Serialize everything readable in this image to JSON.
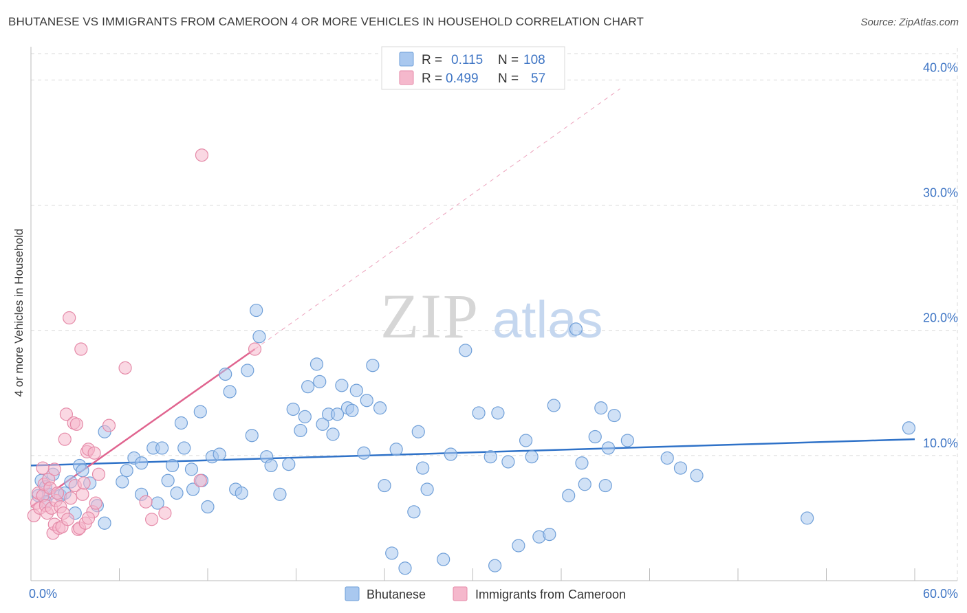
{
  "title": "BHUTANESE VS IMMIGRANTS FROM CAMEROON 4 OR MORE VEHICLES IN HOUSEHOLD CORRELATION CHART",
  "source": "Source: ZipAtlas.com",
  "watermark": {
    "zip": "ZIP",
    "atlas": "atlas"
  },
  "colors": {
    "blue_fill": "#a9c8ef",
    "blue_stroke": "#6f9fd8",
    "blue_line": "#2f72c8",
    "pink_fill": "#f5b8cc",
    "pink_stroke": "#e58aa8",
    "pink_line": "#e0648f",
    "axis_text": "#3d74c4",
    "grid": "#d9d9d9"
  },
  "legend": {
    "rows": [
      {
        "r_label": "R =",
        "r_value": "0.115",
        "n_label": "N =",
        "n_value": "108"
      },
      {
        "r_label": "R =",
        "r_value": "0.499",
        "n_label": "N =",
        "n_value": "57"
      }
    ]
  },
  "chart_data": {
    "type": "scatter",
    "title": "BHUTANESE VS IMMIGRANTS FROM CAMEROON 4 OR MORE VEHICLES IN HOUSEHOLD CORRELATION CHART",
    "xlabel": "",
    "ylabel": "4 or more Vehicles in Household",
    "xlim": [
      0,
      60
    ],
    "ylim": [
      0,
      42
    ],
    "x_tick_labels": [
      {
        "value": 0,
        "label": "0.0%"
      },
      {
        "value": 60,
        "label": "60.0%"
      }
    ],
    "y_tick_labels": [
      {
        "value": 10,
        "label": "10.0%"
      },
      {
        "value": 20,
        "label": "20.0%"
      },
      {
        "value": 30,
        "label": "30.0%"
      },
      {
        "value": 40,
        "label": "40.0%"
      }
    ],
    "x_minor_ticks": [
      0,
      6,
      12,
      18,
      24,
      30,
      36,
      42,
      48,
      54,
      60
    ],
    "grid": true,
    "series": [
      {
        "name": "Bhutanese",
        "color": "#a9c8ef",
        "trend": {
          "x": [
            0,
            60
          ],
          "y": [
            9.2,
            11.3
          ]
        },
        "points": [
          [
            0.5,
            6.8
          ],
          [
            0.7,
            8.0
          ],
          [
            1.0,
            7.5
          ],
          [
            1.2,
            6.9
          ],
          [
            1.0,
            6.3
          ],
          [
            1.5,
            8.5
          ],
          [
            2.0,
            6.8
          ],
          [
            2.3,
            7.0
          ],
          [
            2.7,
            7.9
          ],
          [
            3.3,
            9.2
          ],
          [
            3.0,
            5.4
          ],
          [
            3.5,
            8.8
          ],
          [
            4.0,
            7.8
          ],
          [
            4.5,
            6.0
          ],
          [
            5.0,
            4.6
          ],
          [
            5.0,
            11.9
          ],
          [
            6.2,
            7.9
          ],
          [
            6.5,
            8.8
          ],
          [
            7.0,
            9.8
          ],
          [
            7.5,
            9.4
          ],
          [
            7.5,
            6.9
          ],
          [
            8.3,
            10.6
          ],
          [
            8.6,
            6.2
          ],
          [
            8.9,
            10.6
          ],
          [
            9.3,
            8.0
          ],
          [
            9.6,
            9.2
          ],
          [
            9.9,
            7.0
          ],
          [
            10.2,
            12.6
          ],
          [
            10.4,
            10.6
          ],
          [
            10.9,
            8.9
          ],
          [
            11.0,
            7.3
          ],
          [
            11.5,
            13.5
          ],
          [
            11.6,
            8.0
          ],
          [
            12.0,
            5.9
          ],
          [
            12.3,
            9.9
          ],
          [
            12.8,
            10.1
          ],
          [
            13.2,
            16.5
          ],
          [
            13.5,
            15.1
          ],
          [
            13.9,
            7.3
          ],
          [
            14.3,
            7.0
          ],
          [
            14.7,
            16.8
          ],
          [
            15.0,
            11.6
          ],
          [
            15.3,
            21.6
          ],
          [
            15.5,
            19.5
          ],
          [
            16.0,
            9.9
          ],
          [
            16.3,
            9.2
          ],
          [
            16.9,
            6.9
          ],
          [
            17.5,
            9.3
          ],
          [
            17.8,
            13.7
          ],
          [
            18.3,
            12.0
          ],
          [
            18.6,
            13.1
          ],
          [
            18.8,
            15.5
          ],
          [
            19.4,
            17.3
          ],
          [
            19.6,
            15.9
          ],
          [
            19.8,
            12.5
          ],
          [
            20.2,
            13.3
          ],
          [
            20.5,
            11.7
          ],
          [
            20.8,
            13.3
          ],
          [
            21.1,
            15.6
          ],
          [
            21.5,
            13.8
          ],
          [
            21.8,
            13.6
          ],
          [
            22.1,
            15.2
          ],
          [
            22.6,
            10.2
          ],
          [
            22.8,
            14.4
          ],
          [
            23.2,
            17.2
          ],
          [
            23.7,
            13.8
          ],
          [
            24.0,
            7.6
          ],
          [
            24.5,
            2.2
          ],
          [
            24.8,
            10.5
          ],
          [
            25.4,
            1.0
          ],
          [
            26.0,
            5.5
          ],
          [
            26.3,
            11.9
          ],
          [
            26.6,
            9.0
          ],
          [
            26.9,
            7.3
          ],
          [
            28.0,
            1.7
          ],
          [
            28.5,
            10.1
          ],
          [
            29.5,
            18.4
          ],
          [
            30.4,
            13.4
          ],
          [
            31.2,
            9.9
          ],
          [
            31.5,
            1.2
          ],
          [
            31.7,
            13.4
          ],
          [
            32.4,
            9.5
          ],
          [
            33.1,
            2.8
          ],
          [
            33.6,
            11.2
          ],
          [
            34.0,
            9.9
          ],
          [
            34.5,
            3.5
          ],
          [
            35.2,
            3.7
          ],
          [
            35.5,
            14.0
          ],
          [
            36.5,
            6.8
          ],
          [
            37.0,
            20.1
          ],
          [
            37.4,
            9.4
          ],
          [
            37.6,
            7.7
          ],
          [
            38.3,
            11.5
          ],
          [
            38.7,
            13.8
          ],
          [
            39.0,
            7.6
          ],
          [
            39.2,
            10.6
          ],
          [
            39.6,
            13.2
          ],
          [
            40.5,
            11.2
          ],
          [
            43.2,
            9.8
          ],
          [
            44.1,
            9.0
          ],
          [
            45.2,
            8.4
          ],
          [
            52.7,
            5.0
          ],
          [
            59.6,
            12.2
          ]
        ]
      },
      {
        "name": "Immigrants from Cameroon",
        "color": "#f5b8cc",
        "trend": {
          "x": [
            0,
            15.2
          ],
          "y": [
            5.9,
            18.5
          ]
        },
        "trend_extension": {
          "x": [
            15.2,
            40
          ],
          "y": [
            18.5,
            39.3
          ]
        },
        "points": [
          [
            0.2,
            5.2
          ],
          [
            0.4,
            6.2
          ],
          [
            0.5,
            7.0
          ],
          [
            0.6,
            5.8
          ],
          [
            0.8,
            6.8
          ],
          [
            0.9,
            7.7
          ],
          [
            1.0,
            6.0
          ],
          [
            1.1,
            5.4
          ],
          [
            1.2,
            8.1
          ],
          [
            1.3,
            7.4
          ],
          [
            1.4,
            5.8
          ],
          [
            1.5,
            3.8
          ],
          [
            1.6,
            4.5
          ],
          [
            1.6,
            8.9
          ],
          [
            1.7,
            6.4
          ],
          [
            1.8,
            7.0
          ],
          [
            1.9,
            4.2
          ],
          [
            2.0,
            5.9
          ],
          [
            2.1,
            4.3
          ],
          [
            2.2,
            5.4
          ],
          [
            2.3,
            11.3
          ],
          [
            2.4,
            13.3
          ],
          [
            2.5,
            4.9
          ],
          [
            2.6,
            21.0
          ],
          [
            2.7,
            6.6
          ],
          [
            2.9,
            12.6
          ],
          [
            3.0,
            7.6
          ],
          [
            3.1,
            12.5
          ],
          [
            3.2,
            4.1
          ],
          [
            3.3,
            4.2
          ],
          [
            3.4,
            18.5
          ],
          [
            3.5,
            6.9
          ],
          [
            3.6,
            7.8
          ],
          [
            3.7,
            4.6
          ],
          [
            3.8,
            10.3
          ],
          [
            3.9,
            10.5
          ],
          [
            4.2,
            5.5
          ],
          [
            4.4,
            6.2
          ],
          [
            4.6,
            8.5
          ],
          [
            5.3,
            12.4
          ],
          [
            6.4,
            17.0
          ],
          [
            7.8,
            6.3
          ],
          [
            8.2,
            4.9
          ],
          [
            9.1,
            5.4
          ],
          [
            11.5,
            8.0
          ],
          [
            11.6,
            34.0
          ],
          [
            15.2,
            18.5
          ],
          [
            0.8,
            9.0
          ],
          [
            4.3,
            10.2
          ],
          [
            3.9,
            5.0
          ]
        ]
      }
    ]
  }
}
